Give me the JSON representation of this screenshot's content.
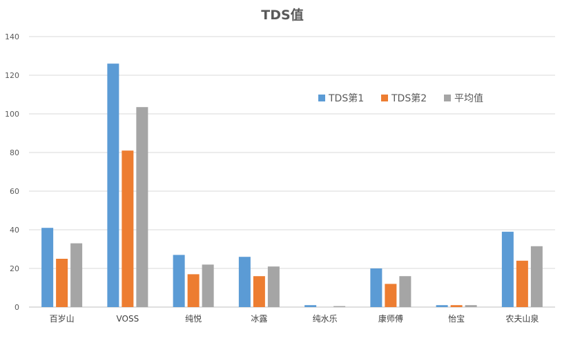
{
  "chart_data": {
    "type": "bar",
    "title": "TDS值",
    "categories": [
      "百岁山",
      "VOSS",
      "纯悦",
      "冰露",
      "纯水乐",
      "康师傅",
      "怡宝",
      "农夫山泉"
    ],
    "series": [
      {
        "name": "TDS第1",
        "color": "#5B9BD5",
        "values": [
          41,
          126,
          27,
          26,
          1,
          20,
          1,
          39
        ]
      },
      {
        "name": "TDS第2",
        "color": "#ED7D31",
        "values": [
          25,
          81,
          17,
          16,
          0,
          12,
          1,
          24
        ]
      },
      {
        "name": "平均值",
        "color": "#A5A5A5",
        "values": [
          33,
          103.5,
          22,
          21,
          0.5,
          16,
          1,
          31.5
        ]
      }
    ],
    "ylim": [
      0,
      140
    ],
    "yticks": [
      "0",
      "20",
      "40",
      "60",
      "80",
      "100",
      "120",
      "140"
    ],
    "grid": true,
    "legend_position": "top-right"
  }
}
